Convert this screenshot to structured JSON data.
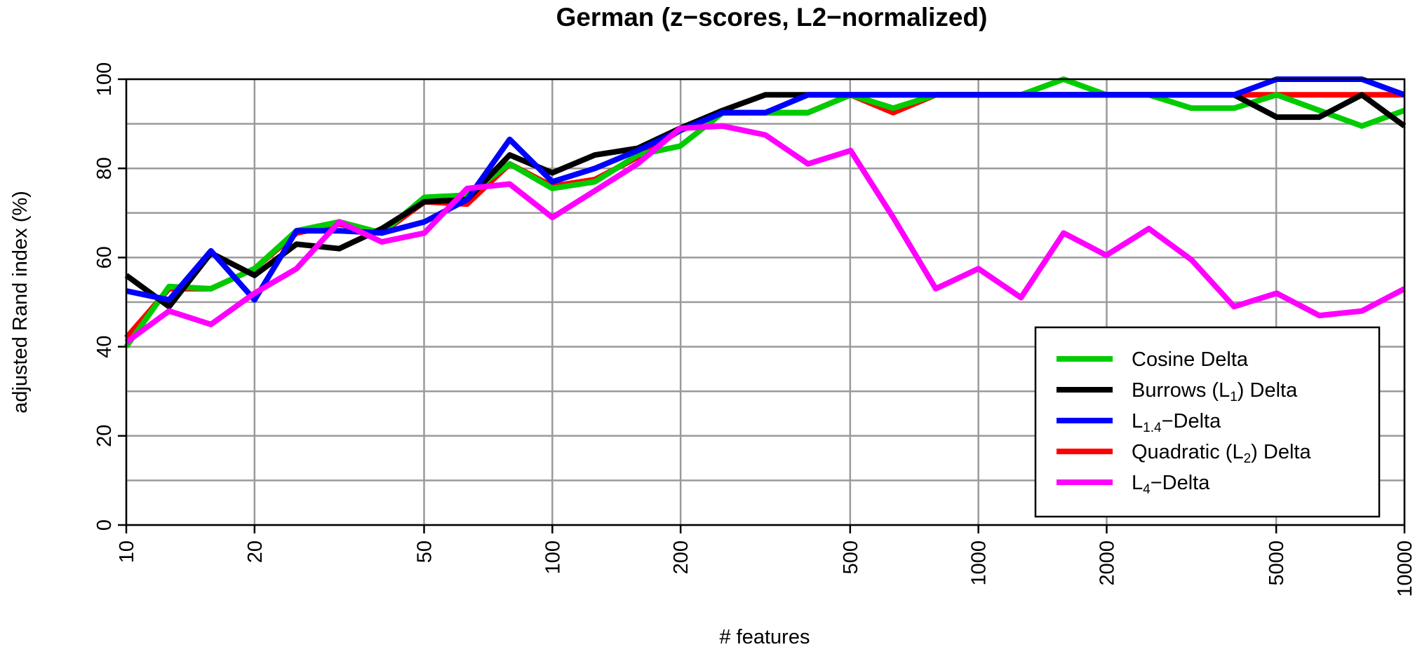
{
  "chart_data": {
    "type": "line",
    "title": "German (z−scores, L2−normalized)",
    "xlabel": "# features",
    "ylabel": "adjusted Rand index (%)",
    "xscale": "log",
    "xlim": [
      10,
      10000
    ],
    "ylim": [
      0,
      100
    ],
    "xticks": [
      10,
      20,
      50,
      100,
      200,
      500,
      1000,
      2000,
      5000,
      10000
    ],
    "xtick_labels": [
      "10",
      "20",
      "50",
      "100",
      "200",
      "500",
      "1000",
      "2000",
      "5000",
      "10000"
    ],
    "yticks": [
      0,
      20,
      40,
      60,
      80,
      100
    ],
    "ytick_labels": [
      "0",
      "20",
      "40",
      "60",
      "80",
      "100"
    ],
    "grid": true,
    "legend_position": "bottom-right",
    "x": [
      10,
      12.6,
      15.8,
      20,
      25.1,
      31.6,
      39.8,
      50.1,
      63.1,
      79.4,
      100,
      125.9,
      158.5,
      199.5,
      251.2,
      316.2,
      398.1,
      501.2,
      631,
      794.3,
      1000,
      1258.9,
      1584.9,
      1995.3,
      2511.9,
      3162.3,
      3981.1,
      5011.9,
      6309.6,
      7943.3,
      10000
    ],
    "series": [
      {
        "name": "Cosine Delta",
        "color": "#00cc00",
        "values": [
          40,
          53.5,
          53,
          57.5,
          66,
          68,
          65.5,
          73.5,
          74,
          81,
          75.5,
          77,
          83,
          85,
          92.5,
          92.5,
          92.5,
          96.5,
          93.5,
          96.5,
          96.5,
          96.5,
          100,
          96.5,
          96.5,
          93.5,
          93.5,
          96.5,
          93,
          89.5,
          93
        ]
      },
      {
        "name": "Burrows (L1) Delta",
        "color": "#000000",
        "values": [
          56,
          49,
          61,
          56,
          63,
          62,
          66.5,
          72.5,
          73,
          83,
          79,
          83,
          84.5,
          89,
          93,
          96.5,
          96.5,
          96.5,
          96.5,
          96.5,
          96.5,
          96.5,
          96.5,
          96.5,
          96.5,
          96.5,
          96.5,
          91.5,
          91.5,
          96.5,
          89.5
        ]
      },
      {
        "name": "L1.4−Delta",
        "color": "#0000ff",
        "values": [
          52.5,
          50.5,
          61.5,
          50.5,
          66,
          66,
          65.5,
          68,
          73,
          86.5,
          77,
          80,
          84,
          88.5,
          92.5,
          92.5,
          96.5,
          96.5,
          96.5,
          96.5,
          96.5,
          96.5,
          96.5,
          96.5,
          96.5,
          96.5,
          96.5,
          100,
          100,
          100,
          96.5
        ]
      },
      {
        "name": "Quadratic (L2) Delta",
        "color": "#ff0000",
        "values": [
          42,
          53,
          53,
          57.5,
          65.5,
          67.5,
          65.5,
          72.5,
          72,
          81,
          76,
          77.5,
          82.5,
          88.5,
          92.5,
          92.5,
          92.5,
          96.5,
          92.5,
          96.5,
          96.5,
          96.5,
          96.5,
          96.5,
          96.5,
          96.5,
          96.5,
          96.5,
          96.5,
          96.5,
          96.5
        ]
      },
      {
        "name": "L4−Delta",
        "color": "#ff00ff",
        "values": [
          41,
          48,
          45,
          52,
          57.5,
          68,
          63.5,
          65.5,
          75.5,
          76.5,
          69,
          75,
          81,
          89,
          89.5,
          87.5,
          81,
          84,
          69,
          53,
          57.5,
          51,
          65.5,
          60.5,
          66.5,
          59.5,
          49,
          52,
          47,
          48,
          53
        ]
      }
    ]
  },
  "legend": {
    "items": [
      {
        "base": "Cosine Delta",
        "sub": "",
        "tail": ""
      },
      {
        "base": "Burrows (L",
        "sub": "1",
        "tail": ") Delta"
      },
      {
        "base": "L",
        "sub": "1.4",
        "tail": "−Delta"
      },
      {
        "base": "Quadratic (L",
        "sub": "2",
        "tail": ") Delta"
      },
      {
        "base": "L",
        "sub": "4",
        "tail": "−Delta"
      }
    ]
  }
}
